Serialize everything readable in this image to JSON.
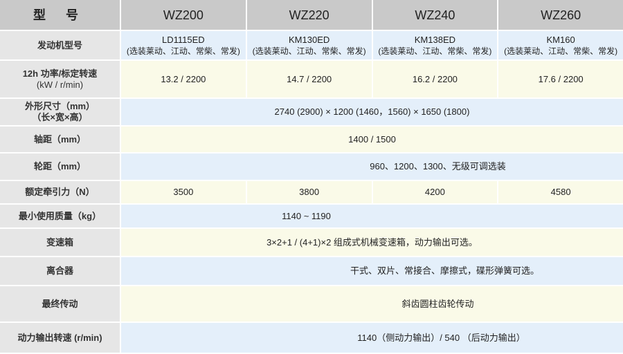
{
  "header": {
    "label": "型 号",
    "models": [
      "WZ200",
      "WZ220",
      "WZ240",
      "WZ260"
    ]
  },
  "rows": {
    "engine": {
      "label": "发动机型号",
      "values": [
        "LD1115ED",
        "KM130ED",
        "KM138ED",
        "KM160"
      ],
      "note": "(选装莱动、江动、常柴、常发)"
    },
    "power": {
      "label": "12h 功率/标定转速",
      "unit": "(kW / r/min)",
      "values": [
        "13.2 / 2200",
        "14.7 / 2200",
        "16.2 / 2200",
        "17.6 / 2200"
      ]
    },
    "dimensions": {
      "label": "外形尺寸（mm）",
      "sub": "（长×宽×高）",
      "value": "2740 (2900) × 1200 (1460，1560) × 1650 (1800)"
    },
    "wheelbase": {
      "label": "轴距（mm）",
      "value": "1400 / 1500"
    },
    "track": {
      "label": "轮距（mm）",
      "value": "960、1200、1300、无级可调选装"
    },
    "traction": {
      "label": "额定牵引力（N）",
      "values": [
        "3500",
        "3800",
        "4200",
        "4580"
      ]
    },
    "mass": {
      "label": "最小使用质量（kg）",
      "value": "1140 ~ 1190"
    },
    "gearbox": {
      "label": "变速箱",
      "value": "3×2+1 / (4+1)×2 组成式机械变速箱，动力输出可选。"
    },
    "clutch": {
      "label": "离合器",
      "value": "干式、双片、常接合、摩擦式，碟形弹簧可选。"
    },
    "final_drive": {
      "label": "最终传动",
      "value": "斜齿圆柱齿轮传动"
    },
    "pto_speed": {
      "label": "动力输出转速 (r/min)",
      "value": "1140（侧动力输出）/ 540 （后动力输出）"
    }
  }
}
